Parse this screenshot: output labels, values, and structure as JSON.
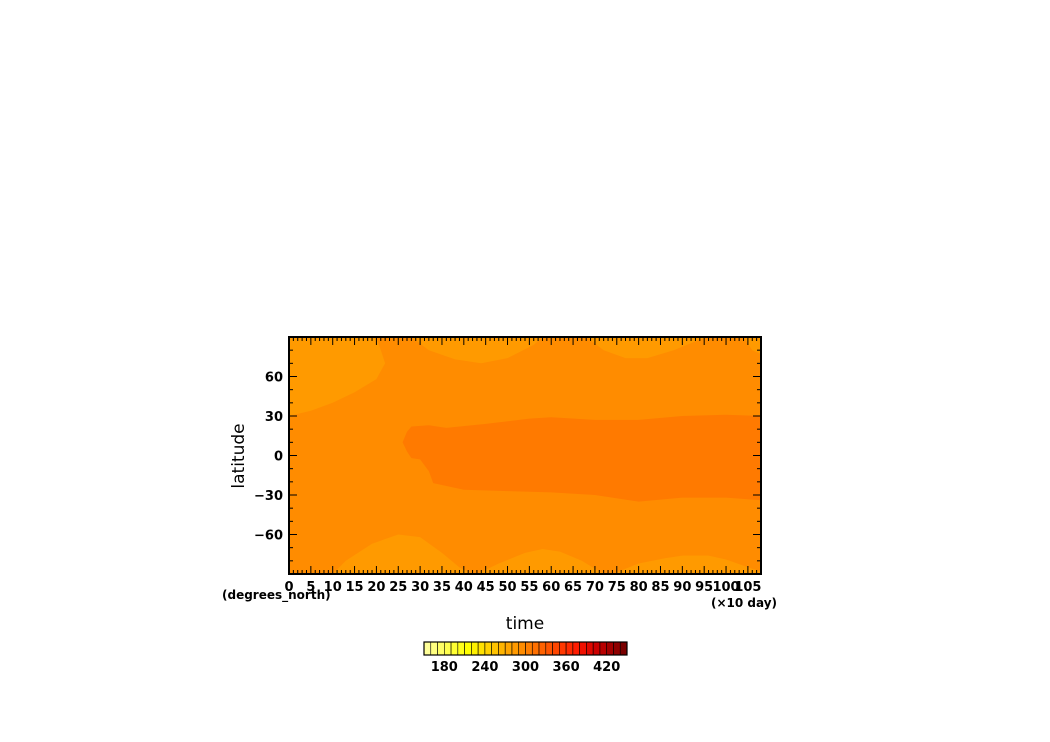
{
  "chart_data": {
    "type": "heatmap",
    "title": "",
    "xlabel": "time",
    "ylabel": "latitude",
    "x_units": "(×10 day)",
    "y_units": "(degrees_north)",
    "xlim": [
      0,
      108
    ],
    "ylim": [
      -90,
      90
    ],
    "x_ticks": [
      0,
      5,
      10,
      15,
      20,
      25,
      30,
      35,
      40,
      45,
      50,
      55,
      60,
      65,
      70,
      75,
      80,
      85,
      90,
      95,
      100,
      105
    ],
    "y_ticks": [
      -60,
      -30,
      0,
      30,
      60
    ],
    "contour_levels": [
      {
        "level": 270,
        "color": "#ff9a00"
      },
      {
        "level": 280,
        "color": "#ff8c00"
      },
      {
        "level": 290,
        "color": "#ff7a00"
      }
    ],
    "regions": [
      {
        "level": 270,
        "boundary": [
          [
            0,
            90
          ],
          [
            0,
            30
          ],
          [
            5,
            34
          ],
          [
            10,
            40
          ],
          [
            15,
            48
          ],
          [
            20,
            58
          ],
          [
            22,
            70
          ],
          [
            21,
            80
          ],
          [
            20,
            90
          ]
        ]
      },
      {
        "level": 270,
        "boundary": [
          [
            28,
            90
          ],
          [
            32,
            80
          ],
          [
            38,
            73
          ],
          [
            44,
            70
          ],
          [
            50,
            74
          ],
          [
            56,
            84
          ],
          [
            58,
            90
          ]
        ]
      },
      {
        "level": 270,
        "boundary": [
          [
            68,
            90
          ],
          [
            72,
            80
          ],
          [
            77,
            74
          ],
          [
            82,
            74
          ],
          [
            88,
            80
          ],
          [
            94,
            88
          ],
          [
            96,
            90
          ]
        ]
      },
      {
        "level": 270,
        "boundary": [
          [
            104,
            90
          ],
          [
            106,
            80
          ],
          [
            108,
            77
          ],
          [
            108,
            90
          ]
        ]
      },
      {
        "level": 270,
        "boundary": [
          [
            10,
            -90
          ],
          [
            13,
            -80
          ],
          [
            19,
            -67
          ],
          [
            25,
            -60
          ],
          [
            30,
            -62
          ],
          [
            35,
            -74
          ],
          [
            39,
            -85
          ],
          [
            42,
            -90
          ]
        ]
      },
      {
        "level": 270,
        "boundary": [
          [
            43,
            -90
          ],
          [
            48,
            -82
          ],
          [
            54,
            -74
          ],
          [
            58,
            -71
          ],
          [
            62,
            -73
          ],
          [
            67,
            -80
          ],
          [
            71,
            -88
          ],
          [
            72,
            -90
          ]
        ]
      },
      {
        "level": 270,
        "boundary": [
          [
            74,
            -90
          ],
          [
            80,
            -82
          ],
          [
            86,
            -78
          ],
          [
            90,
            -76
          ],
          [
            96,
            -76
          ],
          [
            100,
            -79
          ],
          [
            106,
            -86
          ],
          [
            108,
            -88
          ],
          [
            108,
            -90
          ]
        ]
      },
      {
        "level": 290,
        "boundary": [
          [
            27,
            18
          ],
          [
            28,
            22
          ],
          [
            32,
            23
          ],
          [
            36,
            21
          ],
          [
            45,
            24
          ],
          [
            55,
            28
          ],
          [
            60,
            29
          ],
          [
            70,
            27
          ],
          [
            80,
            27
          ],
          [
            90,
            30
          ],
          [
            100,
            31
          ],
          [
            108,
            30
          ],
          [
            108,
            -34
          ],
          [
            100,
            -32
          ],
          [
            90,
            -32
          ],
          [
            80,
            -35
          ],
          [
            70,
            -30
          ],
          [
            60,
            -28
          ],
          [
            50,
            -27
          ],
          [
            40,
            -26
          ],
          [
            33,
            -21
          ],
          [
            32,
            -12
          ],
          [
            30,
            -3
          ],
          [
            28,
            -2
          ],
          [
            27,
            3
          ],
          [
            26,
            10
          ]
        ]
      }
    ],
    "colorbar": {
      "ticks": [
        180,
        240,
        300,
        360,
        420
      ],
      "range": [
        150,
        450
      ],
      "colors": [
        "#ffff99",
        "#ffff80",
        "#ffff66",
        "#ffff4d",
        "#ffff33",
        "#ffff1a",
        "#ffff00",
        "#fff000",
        "#ffe100",
        "#ffd200",
        "#ffc300",
        "#ffb400",
        "#ffa500",
        "#ff9a00",
        "#ff8c00",
        "#ff7e00",
        "#ff7000",
        "#ff6200",
        "#ff5400",
        "#ff4600",
        "#ff3800",
        "#ff2a00",
        "#ff1c00",
        "#f01000",
        "#e00800",
        "#cc0000",
        "#b80000",
        "#a30000",
        "#8f0000",
        "#7a0000"
      ]
    }
  }
}
